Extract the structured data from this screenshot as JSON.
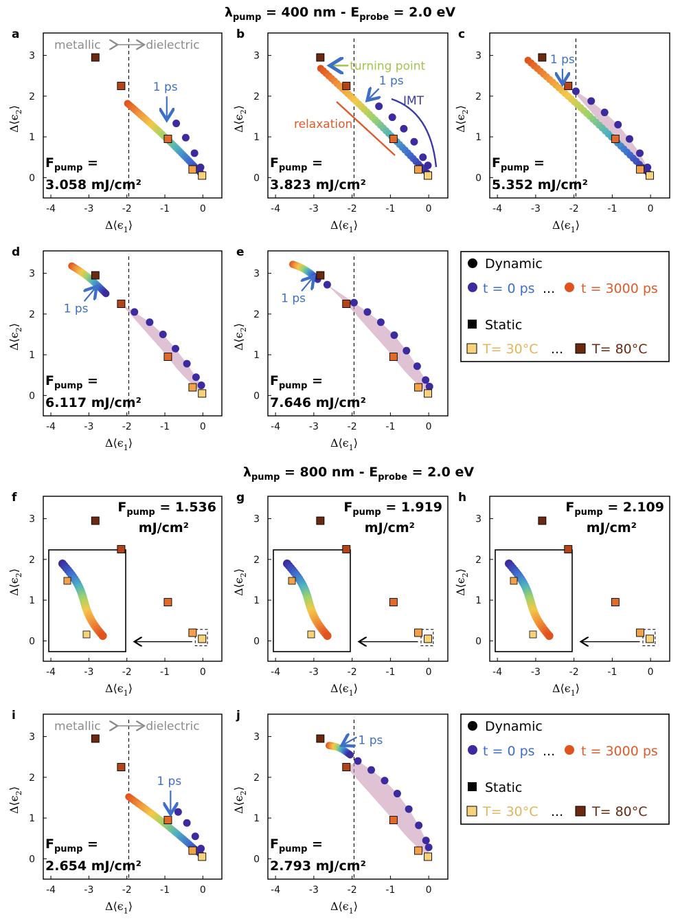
{
  "colors": {
    "blue_annot": "#3d6fc9",
    "orange_annot": "#e05a2a",
    "green_annot": "#a5c44a",
    "gray_annot": "#8c8c8c",
    "shade": "#c99ab8",
    "static_cold": "#f7d27a",
    "static_hot": "#6b2a10",
    "dyn_early": "#3b2b9e",
    "dyn_late": "#e0531f"
  },
  "titles": {
    "top": [
      "λ",
      "pump",
      " = 400 nm - E",
      "probe",
      " =  2.0 eV"
    ],
    "bottom": [
      "λ",
      "pump",
      " = 800 nm - E",
      "probe",
      " =  2.0 eV"
    ]
  },
  "axes": {
    "xticks": [
      "-4",
      "-3",
      "-2",
      "-1",
      "0"
    ],
    "yticks": [
      "0",
      "1",
      "2",
      "3"
    ],
    "xlabel": [
      "Δ⟨ϵ",
      "1",
      "⟩"
    ],
    "ylabel": [
      "Δ⟨ϵ",
      "2",
      "⟩"
    ],
    "xlim": [
      -4.2,
      0.5
    ],
    "ylim": [
      -0.5,
      3.55
    ]
  },
  "fluence_prefix": [
    "F",
    "pump",
    " ="
  ],
  "annotations": {
    "metallic": "metallic",
    "dielectric": "dielectric",
    "one_ps": "1 ps",
    "turning_point": "turning point",
    "imt": "IMT",
    "relaxation": "relaxation"
  },
  "legend": {
    "dynamic": "Dynamic",
    "t_start": "t = 0 ps",
    "ellipsis": "...",
    "t_end": "t = 3000 ps",
    "static": "Static",
    "T_start": "T= 30°C",
    "T_end": "T= 80°C"
  },
  "chart_data": [
    {
      "panel": "a",
      "type": "scatter",
      "fluence": "3.058 mJ/cm²",
      "static_eps": [
        [
          -2.83,
          2.95
        ],
        [
          -2.15,
          2.25
        ],
        [
          -0.92,
          0.95
        ],
        [
          -0.27,
          0.2
        ],
        [
          -0.02,
          0.05
        ]
      ],
      "dynamic_start": [
        -1.98,
        1.82
      ],
      "dynamic_end": [
        -0.02,
        0.08
      ],
      "markers": [
        [
          -0.7,
          1.33
        ],
        [
          -0.45,
          0.98
        ],
        [
          -0.22,
          0.6
        ],
        [
          -0.06,
          0.25
        ]
      ],
      "shade": false,
      "one_ps": [
        -0.95,
        1.42
      ],
      "metallic_dielectric": true
    },
    {
      "panel": "b",
      "type": "scatter",
      "fluence": "3.823 mJ/cm²",
      "static_eps": [
        [
          -2.83,
          2.95
        ],
        [
          -2.15,
          2.25
        ],
        [
          -0.92,
          0.95
        ],
        [
          -0.27,
          0.2
        ],
        [
          -0.02,
          0.05
        ]
      ],
      "dynamic_start": [
        -2.82,
        2.68
      ],
      "dynamic_end": [
        -0.05,
        0.12
      ],
      "markers": [
        [
          -1.3,
          1.75
        ],
        [
          -0.95,
          1.48
        ],
        [
          -0.65,
          1.2
        ],
        [
          -0.38,
          0.88
        ],
        [
          -0.15,
          0.5
        ],
        [
          -0.02,
          0.3
        ]
      ],
      "shade": false,
      "one_ps": [
        -1.55,
        1.88
      ],
      "turning_point": [
        -2.6,
        2.75
      ]
    },
    {
      "panel": "c",
      "type": "scatter",
      "fluence": "5.352 mJ/cm²",
      "static_eps": [
        [
          -2.83,
          2.95
        ],
        [
          -2.15,
          2.25
        ],
        [
          -0.92,
          0.95
        ],
        [
          -0.27,
          0.2
        ],
        [
          -0.02,
          0.05
        ]
      ],
      "dynamic_start": [
        -3.2,
        2.88
      ],
      "dynamic_end": [
        -0.05,
        0.1
      ],
      "markers": [
        [
          -1.95,
          2.12
        ],
        [
          -1.55,
          1.88
        ],
        [
          -1.2,
          1.6
        ],
        [
          -0.85,
          1.3
        ],
        [
          -0.55,
          0.95
        ],
        [
          -0.28,
          0.6
        ],
        [
          -0.08,
          0.25
        ]
      ],
      "shade": true,
      "one_ps": [
        -2.3,
        2.3
      ]
    },
    {
      "panel": "d",
      "type": "scatter",
      "fluence": "6.117 mJ/cm²",
      "static_eps": [
        [
          -2.83,
          2.95
        ],
        [
          -2.15,
          2.25
        ],
        [
          -0.92,
          0.95
        ],
        [
          -0.27,
          0.2
        ],
        [
          -0.02,
          0.05
        ]
      ],
      "dynamic_start": [
        -3.45,
        3.18
      ],
      "dynamic_end": [
        -2.55,
        2.5
      ],
      "markers": [
        [
          -1.8,
          2.05
        ],
        [
          -1.4,
          1.8
        ],
        [
          -1.05,
          1.5
        ],
        [
          -0.72,
          1.15
        ],
        [
          -0.42,
          0.78
        ],
        [
          -0.18,
          0.45
        ],
        [
          -0.04,
          0.25
        ]
      ],
      "shade": true,
      "one_ps": [
        -2.85,
        2.55
      ]
    },
    {
      "panel": "e",
      "type": "scatter",
      "fluence": "7.646 mJ/cm²",
      "static_eps": [
        [
          -2.83,
          2.95
        ],
        [
          -2.15,
          2.25
        ],
        [
          -0.92,
          0.95
        ],
        [
          -0.27,
          0.2
        ],
        [
          -0.02,
          0.05
        ]
      ],
      "dynamic_start": [
        -3.55,
        3.22
      ],
      "dynamic_end": [
        -2.9,
        2.85
      ],
      "markers": [
        [
          -2.65,
          2.72
        ],
        [
          -1.95,
          2.28
        ],
        [
          -1.6,
          2.05
        ],
        [
          -1.25,
          1.8
        ],
        [
          -0.9,
          1.48
        ],
        [
          -0.58,
          1.1
        ],
        [
          -0.3,
          0.72
        ],
        [
          -0.08,
          0.38
        ],
        [
          0.02,
          0.22
        ]
      ],
      "shade": true,
      "one_ps": [
        -3.05,
        2.8
      ]
    },
    {
      "panel": "f",
      "type": "scatter",
      "fluence": "1.536 mJ/cm²",
      "static_eps": [
        [
          -2.83,
          2.95
        ],
        [
          -2.15,
          2.25
        ],
        [
          -0.92,
          0.95
        ],
        [
          -0.27,
          0.2
        ],
        [
          -0.02,
          0.05
        ]
      ],
      "inset": true
    },
    {
      "panel": "g",
      "type": "scatter",
      "fluence": "1.919 mJ/cm²",
      "static_eps": [
        [
          -2.83,
          2.95
        ],
        [
          -2.15,
          2.25
        ],
        [
          -0.92,
          0.95
        ],
        [
          -0.27,
          0.2
        ],
        [
          -0.02,
          0.05
        ]
      ],
      "inset": true
    },
    {
      "panel": "h",
      "type": "scatter",
      "fluence": "2.109 mJ/cm²",
      "static_eps": [
        [
          -2.83,
          2.95
        ],
        [
          -2.15,
          2.25
        ],
        [
          -0.92,
          0.95
        ],
        [
          -0.27,
          0.2
        ],
        [
          -0.02,
          0.05
        ]
      ],
      "inset": true
    },
    {
      "panel": "i",
      "type": "scatter",
      "fluence": "2.654 mJ/cm²",
      "static_eps": [
        [
          -2.83,
          2.95
        ],
        [
          -2.15,
          2.25
        ],
        [
          -0.92,
          0.95
        ],
        [
          -0.27,
          0.2
        ],
        [
          -0.02,
          0.05
        ]
      ],
      "dynamic_start": [
        -1.95,
        1.52
      ],
      "dynamic_end": [
        -0.02,
        0.08
      ],
      "markers": [
        [
          -0.65,
          1.15
        ],
        [
          -0.42,
          0.88
        ],
        [
          -0.2,
          0.55
        ],
        [
          -0.05,
          0.25
        ]
      ],
      "shade": false,
      "one_ps": [
        -0.85,
        1.1
      ],
      "metallic_dielectric": true
    },
    {
      "panel": "j",
      "type": "scatter",
      "fluence": "2.793 mJ/cm²",
      "static_eps": [
        [
          -2.83,
          2.95
        ],
        [
          -2.15,
          2.25
        ],
        [
          -0.92,
          0.95
        ],
        [
          -0.27,
          0.2
        ],
        [
          -0.02,
          0.05
        ]
      ],
      "dynamic_start": [
        -2.6,
        2.78
      ],
      "dynamic_end": [
        -2.05,
        2.55
      ],
      "markers": [
        [
          -1.85,
          2.4
        ],
        [
          -1.5,
          2.18
        ],
        [
          -1.15,
          1.92
        ],
        [
          -0.82,
          1.6
        ],
        [
          -0.52,
          1.22
        ],
        [
          -0.26,
          0.82
        ],
        [
          -0.07,
          0.45
        ],
        [
          0.0,
          0.28
        ]
      ],
      "shade": true,
      "one_ps": [
        -2.2,
        2.75
      ]
    }
  ]
}
